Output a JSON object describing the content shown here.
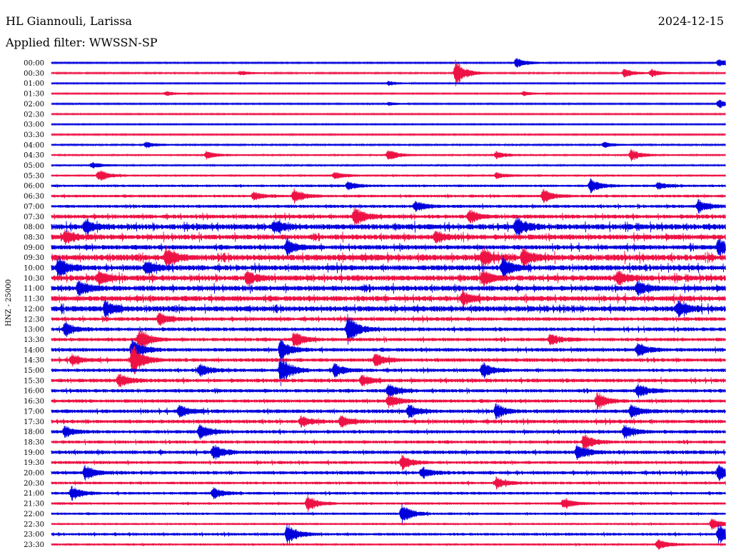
{
  "header": {
    "station": "HL Giannouli, Larissa",
    "date": "2024-12-15",
    "filter": "Applied filter: WWSSN-SP"
  },
  "colors": {
    "blue": "#0000dd",
    "red": "#ee1144"
  },
  "chart_data": {
    "type": "line",
    "ylabel": "HNZ - 25000",
    "row_labels": [
      "00:00",
      "00:30",
      "01:00",
      "01:30",
      "02:00",
      "02:30",
      "03:00",
      "03:30",
      "04:00",
      "04:30",
      "05:00",
      "05:30",
      "06:00",
      "06:30",
      "07:00",
      "07:30",
      "08:00",
      "08:30",
      "09:00",
      "09:30",
      "10:00",
      "10:30",
      "11:00",
      "11:30",
      "12:00",
      "12:30",
      "13:00",
      "13:30",
      "14:00",
      "14:30",
      "15:00",
      "15:30",
      "16:00",
      "16:30",
      "17:00",
      "17:30",
      "18:00",
      "18:30",
      "19:00",
      "19:30",
      "20:00",
      "20:30",
      "21:00",
      "21:30",
      "22:00",
      "22:30",
      "23:00",
      "23:30"
    ],
    "row_colors": "alternating blue / red",
    "activity_level": [
      0.08,
      0.1,
      0.06,
      0.06,
      0.08,
      0.07,
      0.06,
      0.08,
      0.12,
      0.15,
      0.15,
      0.18,
      0.25,
      0.3,
      0.35,
      0.5,
      0.75,
      0.7,
      0.6,
      0.85,
      0.7,
      0.75,
      0.7,
      0.7,
      0.75,
      0.45,
      0.45,
      0.4,
      0.45,
      0.45,
      0.4,
      0.45,
      0.4,
      0.4,
      0.45,
      0.45,
      0.4,
      0.35,
      0.45,
      0.35,
      0.4,
      0.3,
      0.3,
      0.25,
      0.25,
      0.2,
      0.3,
      0.2
    ],
    "events": [
      {
        "row": 0,
        "t": 0.69,
        "amp": 8
      },
      {
        "row": 0,
        "t": 0.99,
        "amp": 6
      },
      {
        "row": 1,
        "t": 0.6,
        "amp": 20
      },
      {
        "row": 1,
        "t": 0.85,
        "amp": 6
      },
      {
        "row": 1,
        "t": 0.89,
        "amp": 6
      },
      {
        "row": 1,
        "t": 0.28,
        "amp": 3
      },
      {
        "row": 2,
        "t": 0.5,
        "amp": 3
      },
      {
        "row": 3,
        "t": 0.17,
        "amp": 3
      },
      {
        "row": 3,
        "t": 0.7,
        "amp": 3
      },
      {
        "row": 4,
        "t": 0.99,
        "amp": 6
      },
      {
        "row": 4,
        "t": 0.5,
        "amp": 2
      },
      {
        "row": 8,
        "t": 0.14,
        "amp": 4
      },
      {
        "row": 8,
        "t": 0.82,
        "amp": 4
      },
      {
        "row": 9,
        "t": 0.23,
        "amp": 5
      },
      {
        "row": 9,
        "t": 0.5,
        "amp": 8
      },
      {
        "row": 9,
        "t": 0.66,
        "amp": 5
      },
      {
        "row": 9,
        "t": 0.86,
        "amp": 8
      },
      {
        "row": 10,
        "t": 0.06,
        "amp": 4
      },
      {
        "row": 11,
        "t": 0.07,
        "amp": 9
      },
      {
        "row": 11,
        "t": 0.42,
        "amp": 5
      },
      {
        "row": 11,
        "t": 0.66,
        "amp": 4
      },
      {
        "row": 12,
        "t": 0.44,
        "amp": 6
      },
      {
        "row": 12,
        "t": 0.8,
        "amp": 10
      },
      {
        "row": 12,
        "t": 0.9,
        "amp": 5
      },
      {
        "row": 13,
        "t": 0.36,
        "amp": 10
      },
      {
        "row": 13,
        "t": 0.73,
        "amp": 10
      },
      {
        "row": 13,
        "t": 0.3,
        "amp": 6
      },
      {
        "row": 14,
        "t": 0.54,
        "amp": 8
      },
      {
        "row": 14,
        "t": 0.96,
        "amp": 9
      },
      {
        "row": 15,
        "t": 0.45,
        "amp": 14
      },
      {
        "row": 15,
        "t": 0.62,
        "amp": 9
      },
      {
        "row": 16,
        "t": 0.05,
        "amp": 9
      },
      {
        "row": 16,
        "t": 0.33,
        "amp": 9
      },
      {
        "row": 16,
        "t": 0.69,
        "amp": 14
      },
      {
        "row": 17,
        "t": 0.02,
        "amp": 9
      },
      {
        "row": 17,
        "t": 0.57,
        "amp": 8
      },
      {
        "row": 18,
        "t": 0.35,
        "amp": 12
      },
      {
        "row": 18,
        "t": 0.99,
        "amp": 12
      },
      {
        "row": 19,
        "t": 0.17,
        "amp": 14
      },
      {
        "row": 19,
        "t": 0.64,
        "amp": 12
      },
      {
        "row": 19,
        "t": 0.7,
        "amp": 12
      },
      {
        "row": 20,
        "t": 0.01,
        "amp": 14
      },
      {
        "row": 20,
        "t": 0.14,
        "amp": 10
      },
      {
        "row": 20,
        "t": 0.67,
        "amp": 16
      },
      {
        "row": 21,
        "t": 0.07,
        "amp": 10
      },
      {
        "row": 21,
        "t": 0.29,
        "amp": 10
      },
      {
        "row": 21,
        "t": 0.64,
        "amp": 10
      },
      {
        "row": 21,
        "t": 0.84,
        "amp": 10
      },
      {
        "row": 22,
        "t": 0.04,
        "amp": 10
      },
      {
        "row": 22,
        "t": 0.87,
        "amp": 10
      },
      {
        "row": 23,
        "t": 0.61,
        "amp": 9
      },
      {
        "row": 24,
        "t": 0.08,
        "amp": 12
      },
      {
        "row": 24,
        "t": 0.93,
        "amp": 10
      },
      {
        "row": 25,
        "t": 0.16,
        "amp": 9
      },
      {
        "row": 26,
        "t": 0.02,
        "amp": 10
      },
      {
        "row": 26,
        "t": 0.44,
        "amp": 22
      },
      {
        "row": 27,
        "t": 0.13,
        "amp": 16
      },
      {
        "row": 27,
        "t": 0.36,
        "amp": 12
      },
      {
        "row": 27,
        "t": 0.74,
        "amp": 8
      },
      {
        "row": 28,
        "t": 0.12,
        "amp": 18
      },
      {
        "row": 28,
        "t": 0.34,
        "amp": 16
      },
      {
        "row": 28,
        "t": 0.87,
        "amp": 10
      },
      {
        "row": 29,
        "t": 0.03,
        "amp": 8
      },
      {
        "row": 29,
        "t": 0.12,
        "amp": 24
      },
      {
        "row": 29,
        "t": 0.48,
        "amp": 9
      },
      {
        "row": 30,
        "t": 0.22,
        "amp": 10
      },
      {
        "row": 30,
        "t": 0.34,
        "amp": 22
      },
      {
        "row": 30,
        "t": 0.42,
        "amp": 10
      },
      {
        "row": 30,
        "t": 0.64,
        "amp": 12
      },
      {
        "row": 31,
        "t": 0.1,
        "amp": 9
      },
      {
        "row": 31,
        "t": 0.46,
        "amp": 8
      },
      {
        "row": 32,
        "t": 0.5,
        "amp": 10
      },
      {
        "row": 32,
        "t": 0.87,
        "amp": 10
      },
      {
        "row": 33,
        "t": 0.5,
        "amp": 10
      },
      {
        "row": 33,
        "t": 0.81,
        "amp": 12
      },
      {
        "row": 34,
        "t": 0.19,
        "amp": 10
      },
      {
        "row": 34,
        "t": 0.53,
        "amp": 10
      },
      {
        "row": 34,
        "t": 0.66,
        "amp": 10
      },
      {
        "row": 34,
        "t": 0.86,
        "amp": 9
      },
      {
        "row": 35,
        "t": 0.37,
        "amp": 8
      },
      {
        "row": 35,
        "t": 0.43,
        "amp": 8
      },
      {
        "row": 36,
        "t": 0.02,
        "amp": 8
      },
      {
        "row": 36,
        "t": 0.22,
        "amp": 10
      },
      {
        "row": 36,
        "t": 0.85,
        "amp": 10
      },
      {
        "row": 37,
        "t": 0.79,
        "amp": 12
      },
      {
        "row": 38,
        "t": 0.24,
        "amp": 12
      },
      {
        "row": 38,
        "t": 0.78,
        "amp": 12
      },
      {
        "row": 39,
        "t": 0.52,
        "amp": 10
      },
      {
        "row": 40,
        "t": 0.05,
        "amp": 10
      },
      {
        "row": 40,
        "t": 0.55,
        "amp": 8
      },
      {
        "row": 40,
        "t": 0.99,
        "amp": 12
      },
      {
        "row": 41,
        "t": 0.66,
        "amp": 8
      },
      {
        "row": 42,
        "t": 0.03,
        "amp": 10
      },
      {
        "row": 42,
        "t": 0.24,
        "amp": 8
      },
      {
        "row": 43,
        "t": 0.38,
        "amp": 12
      },
      {
        "row": 43,
        "t": 0.76,
        "amp": 8
      },
      {
        "row": 44,
        "t": 0.52,
        "amp": 14
      },
      {
        "row": 45,
        "t": 0.98,
        "amp": 8
      },
      {
        "row": 46,
        "t": 0.35,
        "amp": 16
      },
      {
        "row": 46,
        "t": 0.99,
        "amp": 14
      },
      {
        "row": 47,
        "t": 0.9,
        "amp": 8
      }
    ]
  }
}
